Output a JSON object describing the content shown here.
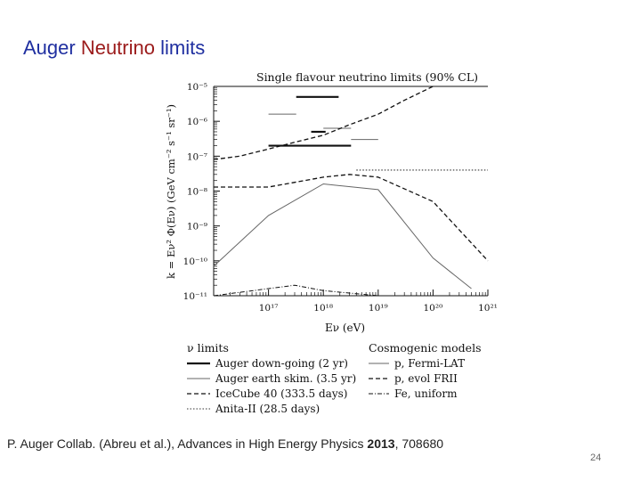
{
  "slide": {
    "title_part1": "Auger ",
    "title_part2": "Neutrino",
    "title_part3": " limits",
    "citation_part1": "P. Auger Collab. (Abreu et al.),  Advances in High Energy Physics ",
    "citation_year": "2013",
    "citation_part2": ", 708680",
    "page_number": "24"
  },
  "figure": {
    "plot_title": "Single flavour neutrino limits (90% CL)",
    "y_label": "k = Eν² Φ(Eν) (GeV cm⁻² s⁻¹ sr⁻¹)",
    "x_label": "Eν (eV)",
    "y_ticks": [
      "10⁻⁵",
      "10⁻⁶",
      "10⁻⁷",
      "10⁻⁸",
      "10⁻⁹",
      "10⁻¹⁰",
      "10⁻¹¹"
    ],
    "x_ticks": [
      "10¹⁷",
      "10¹⁸",
      "10¹⁹",
      "10²⁰",
      "10²¹"
    ],
    "legend_left_title": "ν limits",
    "legend_left": [
      "Auger down-going  (2 yr)",
      "Auger earth skim.  (3.5 yr)",
      "IceCube 40 (333.5 days)",
      "Anita-II (28.5 days)"
    ],
    "legend_right_title": "Cosmogenic models",
    "legend_right": [
      "p, Fermi-LAT",
      "p, evol FRII",
      "Fe, uniform"
    ]
  },
  "chart_data": {
    "type": "line",
    "title": "Single flavour neutrino limits (90% CL)",
    "xlabel": "Eν (eV)",
    "ylabel": "k = Eν² Φ(Eν) (GeV cm⁻² s⁻¹ sr⁻¹)",
    "x_scale": "log",
    "y_scale": "log",
    "xlim": [
      1e+16,
      1e+21
    ],
    "ylim": [
      1e-11,
      1e-05
    ],
    "grid": false,
    "legend": "below",
    "series": [
      {
        "name": "Auger down-going  (2 yr)",
        "style": "solid-thick",
        "kind": "step",
        "bins": [
          [
            1e+17,
            3.2e+18,
            2e-07
          ],
          [
            3.2e+17,
            1.9e+18,
            5e-06
          ],
          [
            6e+17,
            1.1e+18,
            5e-07
          ]
        ]
      },
      {
        "name": "Auger earth skim.  (3.5 yr)",
        "style": "solid-thin",
        "kind": "step",
        "bins": [
          [
            1e+17,
            3.2e+17,
            1.6e-06
          ],
          [
            1e+18,
            3.2e+18,
            6.3e-07
          ],
          [
            3.2e+18,
            1e+19,
            3e-07
          ]
        ]
      },
      {
        "name": "IceCube 40 (333.5 days)",
        "style": "dashed",
        "kind": "curve",
        "x": [
          1e+16,
          3e+16,
          1e+17,
          3e+17,
          1e+18,
          3e+18,
          1e+19,
          3e+19,
          1e+20
        ],
        "y": [
          8e-08,
          1e-07,
          1.6e-07,
          2.5e-07,
          4e-07,
          8e-07,
          1.6e-06,
          4e-06,
          1e-05
        ]
      },
      {
        "name": "Anita-II (28.5 days)",
        "style": "dotted",
        "kind": "curve",
        "x": [
          4e+18,
          1e+19,
          1e+20,
          1e+21
        ],
        "y": [
          4e-08,
          4e-08,
          4e-08,
          4e-08
        ]
      },
      {
        "name": "p, Fermi-LAT",
        "style": "solid-thin",
        "kind": "curve",
        "x": [
          1e+16,
          1e+17,
          1e+18,
          1e+19,
          1e+20,
          5e+20
        ],
        "y": [
          7e-11,
          2e-09,
          1.6e-08,
          1.1e-08,
          1.2e-10,
          1.6e-11
        ]
      },
      {
        "name": "p, evol FRII",
        "style": "dashed",
        "kind": "curve",
        "x": [
          1e+16,
          1e+17,
          1e+18,
          3e+18,
          1e+19,
          1e+20,
          1e+21
        ],
        "y": [
          1.3e-08,
          1.3e-08,
          2.5e-08,
          3e-08,
          2.5e-08,
          5e-09,
          1e-10
        ]
      },
      {
        "name": "Fe, uniform",
        "style": "dash-dot",
        "kind": "curve",
        "x": [
          1e+16,
          1e+17,
          3e+17,
          1e+18,
          1e+19
        ],
        "y": [
          1e-11,
          1.6e-11,
          2e-11,
          1.4e-11,
          1e-11
        ]
      }
    ]
  }
}
